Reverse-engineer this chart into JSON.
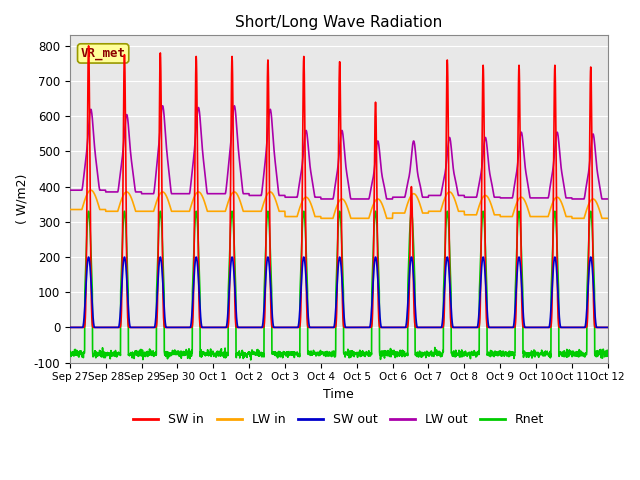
{
  "title": "Short/Long Wave Radiation",
  "xlabel": "Time",
  "ylabel": "( W/m2)",
  "ylim": [
    -100,
    830
  ],
  "yticks": [
    -100,
    0,
    100,
    200,
    300,
    400,
    500,
    600,
    700,
    800
  ],
  "xtick_labels": [
    "Sep 27",
    "Sep 28",
    "Sep 29",
    "Sep 30",
    "Oct 1",
    "Oct 2",
    "Oct 3",
    "Oct 4",
    "Oct 5",
    "Oct 6",
    "Oct 7",
    "Oct 8",
    "Oct 9",
    "Oct 10",
    "Oct 11",
    "Oct 12"
  ],
  "series": {
    "SW_in": {
      "color": "#FF0000",
      "label": "SW in",
      "lw": 1.2
    },
    "LW_in": {
      "color": "#FFA500",
      "label": "LW in",
      "lw": 1.2
    },
    "SW_out": {
      "color": "#0000CC",
      "label": "SW out",
      "lw": 1.2
    },
    "LW_out": {
      "color": "#AA00AA",
      "label": "LW out",
      "lw": 1.2
    },
    "Rnet": {
      "color": "#00CC00",
      "label": "Rnet",
      "lw": 1.2
    }
  },
  "plot_bg_color": "#E8E8E8",
  "annotation": {
    "text": "VR_met",
    "fontsize": 9,
    "color": "#8B0000",
    "bbox_facecolor": "#FFFF99",
    "bbox_edgecolor": "#999900"
  },
  "sw_peaks": [
    800,
    775,
    780,
    770,
    770,
    760,
    770,
    755,
    640,
    400,
    760,
    745,
    745,
    745,
    740
  ],
  "lw_out_peaks": [
    590,
    575,
    600,
    595,
    600,
    590,
    530,
    530,
    500,
    500,
    510,
    510,
    525,
    525,
    520
  ],
  "lw_in_base": [
    335,
    330,
    330,
    330,
    330,
    330,
    315,
    310,
    310,
    325,
    330,
    320,
    315,
    315,
    310
  ],
  "lw_out_base": [
    390,
    385,
    380,
    380,
    380,
    375,
    370,
    365,
    365,
    370,
    375,
    370,
    368,
    368,
    365
  ],
  "night_rnet": -75,
  "day_sw_out": 200,
  "grid_color": "white"
}
